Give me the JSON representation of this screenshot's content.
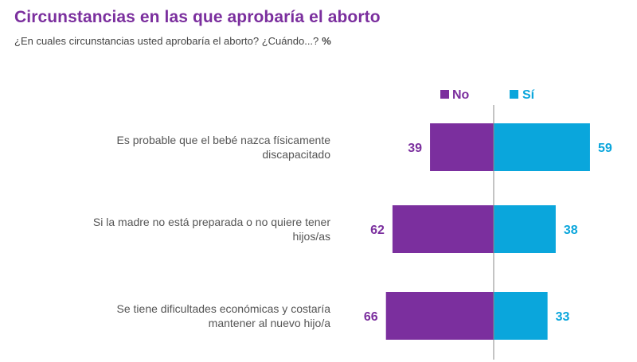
{
  "header": {
    "title": "Circunstancias en las que aprobaría el aborto",
    "subtitle": "¿En cuales circunstancias usted aprobaría el aborto? ¿Cuándo...?",
    "unit": "%"
  },
  "chart_data": {
    "type": "bar",
    "orientation": "horizontal-diverging",
    "categories": [
      "Es probable que el bebé nazca físicamente discapacitado",
      "Si la madre no está preparada o no quiere tener hijos/as",
      "Se tiene dificultades económicas y costaría mantener al nuevo hijo/a"
    ],
    "series": [
      {
        "name": "No",
        "values": [
          39,
          62,
          66
        ],
        "color": "#7b2f9e",
        "direction": "left"
      },
      {
        "name": "Sí",
        "values": [
          59,
          38,
          33
        ],
        "color": "#0aa6dc",
        "direction": "right"
      }
    ],
    "title": "Circunstancias en las que aprobaría el aborto",
    "legend": "top",
    "grid": false,
    "ylim": [
      0,
      100
    ]
  }
}
